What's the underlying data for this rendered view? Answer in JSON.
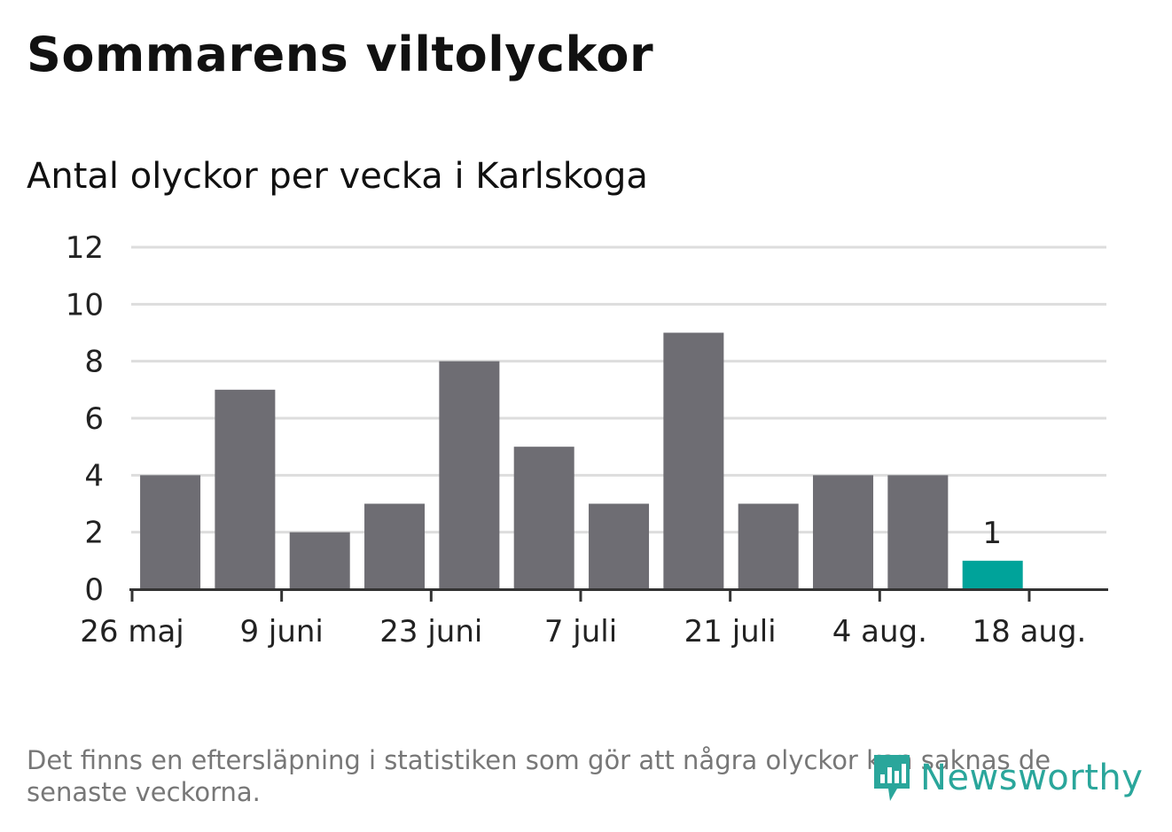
{
  "title": "Sommarens viltolyckor",
  "subtitle": "Antal olyckor per vecka i Karlskoga",
  "footnote": "Det finns en eftersläpning i statistiken som gör att några olyckor kan saknas de senaste veckorna.",
  "logo": {
    "text": "Newsworthy",
    "color": "#2aa69b",
    "icon": "newsworthy-logo-icon"
  },
  "chart_data": {
    "type": "bar",
    "title": "Sommarens viltolyckor",
    "subtitle": "Antal olyckor per vecka i Karlskoga",
    "weeks": [
      "2024-06-02",
      "2024-06-09",
      "2024-06-16",
      "2024-06-23",
      "2024-06-30",
      "2024-07-07",
      "2024-07-14",
      "2024-07-21",
      "2024-07-28",
      "2024-08-04",
      "2024-08-11",
      "2024-08-18"
    ],
    "values": [
      4,
      7,
      2,
      3,
      8,
      5,
      3,
      9,
      3,
      4,
      4,
      1
    ],
    "highlight_last": true,
    "data_labels": [
      {
        "index": 11,
        "text": "1"
      }
    ],
    "x_ticks": [
      "26 maj",
      "9 juni",
      "23 juni",
      "7 juli",
      "21 juli",
      "4 aug.",
      "18 aug."
    ],
    "y_ticks": [
      "0",
      "2",
      "4",
      "6",
      "8",
      "10",
      "12"
    ],
    "ylim": [
      0,
      12
    ],
    "grid": true,
    "colors": {
      "bar": "#6e6d73",
      "highlight": "#00a39a",
      "grid": "#dddddd",
      "axis": "#333333"
    }
  }
}
